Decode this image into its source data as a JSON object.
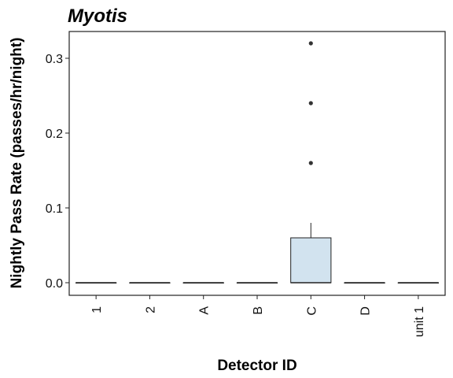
{
  "chart_data": {
    "type": "box",
    "title": "Myotis",
    "xlabel": "Detector ID",
    "ylabel": "Nightly Pass Rate (passes/hr/night)",
    "ylim": [
      -0.017,
      0.335
    ],
    "yticks": [
      0.0,
      0.1,
      0.2,
      0.3
    ],
    "ytick_labels": [
      "0.0",
      "0.1",
      "0.2",
      "0.3"
    ],
    "categories": [
      "1",
      "2",
      "A",
      "B",
      "C",
      "D",
      "unit 1"
    ],
    "boxes": [
      {
        "category": "1",
        "min": 0,
        "q1": 0,
        "median": 0,
        "q3": 0,
        "max": 0,
        "outliers": []
      },
      {
        "category": "2",
        "min": 0,
        "q1": 0,
        "median": 0,
        "q3": 0,
        "max": 0,
        "outliers": []
      },
      {
        "category": "A",
        "min": 0,
        "q1": 0,
        "median": 0,
        "q3": 0,
        "max": 0,
        "outliers": []
      },
      {
        "category": "B",
        "min": 0,
        "q1": 0,
        "median": 0,
        "q3": 0,
        "max": 0,
        "outliers": []
      },
      {
        "category": "C",
        "min": 0,
        "q1": 0,
        "median": 0,
        "q3": 0.06,
        "max": 0.08,
        "outliers": [
          0.16,
          0.24,
          0.32
        ]
      },
      {
        "category": "D",
        "min": 0,
        "q1": 0,
        "median": 0,
        "q3": 0,
        "max": 0,
        "outliers": []
      },
      {
        "category": "unit 1",
        "min": 0,
        "q1": 0,
        "median": 0,
        "q3": 0,
        "max": 0,
        "outliers": []
      }
    ],
    "box_fill": "#d2e3ef",
    "box_stroke": "#222222",
    "grid": false,
    "legend": "none"
  }
}
